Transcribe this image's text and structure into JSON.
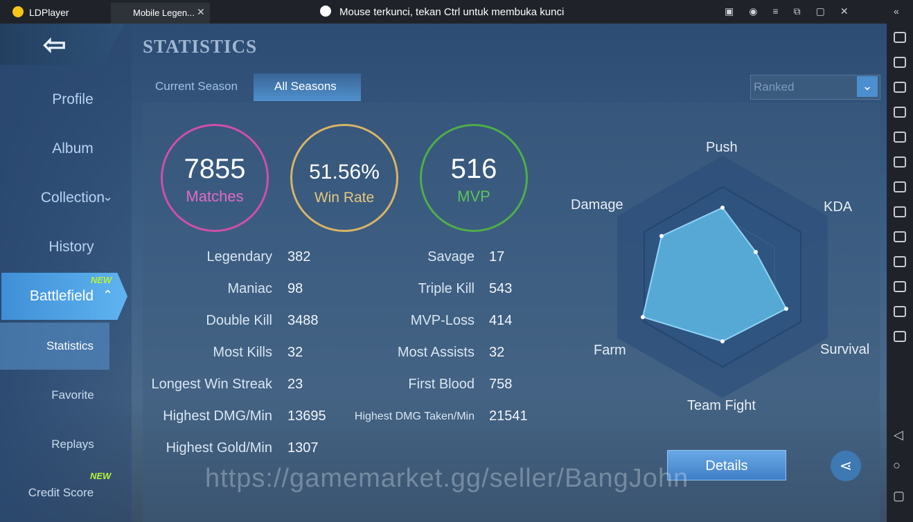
{
  "titlebar": {
    "app": "LDPlayer",
    "tab": "Mobile Legen...",
    "notice": "Mouse terkunci, tekan Ctrl untuk membuka kunci"
  },
  "header": {
    "title": "STATISTICS"
  },
  "sidebar": {
    "items": [
      {
        "label": "Profile"
      },
      {
        "label": "Album"
      },
      {
        "label": "Collection"
      },
      {
        "label": "History"
      },
      {
        "label": "Battlefield",
        "badge": "NEW"
      },
      {
        "label": "Statistics"
      },
      {
        "label": "Favorite"
      },
      {
        "label": "Replays"
      },
      {
        "label": "Credit Score",
        "badge": "NEW"
      }
    ]
  },
  "tabs": [
    "Current Season",
    "All Seasons"
  ],
  "dropdown": "Ranked",
  "summary": [
    {
      "value": "7855",
      "label": "Matches"
    },
    {
      "value": "51.56%",
      "label": "Win Rate"
    },
    {
      "value": "516",
      "label": "MVP"
    }
  ],
  "stats": {
    "left": [
      {
        "label": "Legendary",
        "value": "382"
      },
      {
        "label": "Maniac",
        "value": "98"
      },
      {
        "label": "Double Kill",
        "value": "3488"
      },
      {
        "label": "Most Kills",
        "value": "32"
      },
      {
        "label": "Longest Win Streak",
        "value": "23"
      },
      {
        "label": "Highest DMG/Min",
        "value": "13695"
      },
      {
        "label": "Highest Gold/Min",
        "value": "1307"
      }
    ],
    "right": [
      {
        "label": "Savage",
        "value": "17"
      },
      {
        "label": "Triple Kill",
        "value": "543"
      },
      {
        "label": "MVP-Loss",
        "value": "414"
      },
      {
        "label": "Most Assists",
        "value": "32"
      },
      {
        "label": "First Blood",
        "value": "758"
      },
      {
        "label": "Highest DMG Taken/Min",
        "value": "21541"
      }
    ]
  },
  "radar": {
    "labels": [
      "Push",
      "KDA",
      "Survival",
      "Team Fight",
      "Farm",
      "Damage"
    ]
  },
  "details": "Details",
  "watermark": "https://gamemarket.gg/seller/BangJohn"
}
